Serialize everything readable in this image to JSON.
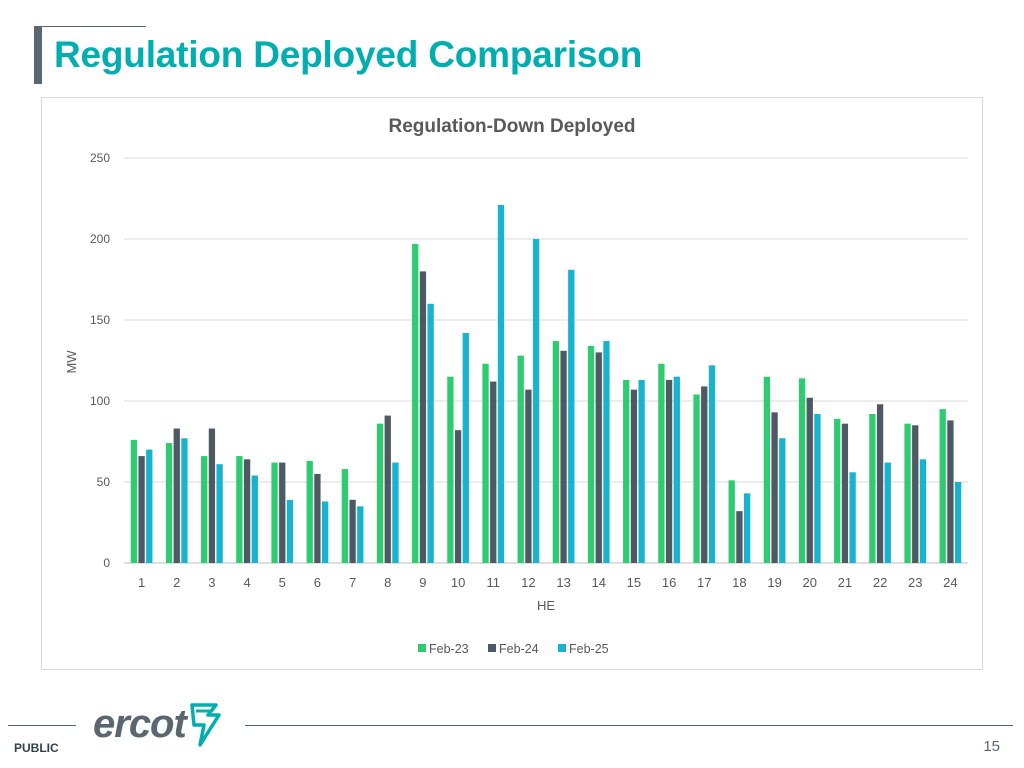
{
  "slide": {
    "title": "Regulation Deployed Comparison",
    "footer_label": "PUBLIC",
    "page_number": "15",
    "logo_text": "ercot"
  },
  "colors": {
    "title": "#00aeb0",
    "series_feb23": "#2ecc71",
    "series_feb24": "#4d5a63",
    "series_feb25": "#17b3cf",
    "grid": "#d9d9d9",
    "axis_text": "#595959"
  },
  "chart_data": {
    "type": "bar",
    "title": "Regulation-Down Deployed",
    "xlabel": "HE",
    "ylabel": "MW",
    "ylim": [
      0,
      250
    ],
    "yticks": [
      0,
      50,
      100,
      150,
      200,
      250
    ],
    "categories": [
      "1",
      "2",
      "3",
      "4",
      "5",
      "6",
      "7",
      "8",
      "9",
      "10",
      "11",
      "12",
      "13",
      "14",
      "15",
      "16",
      "17",
      "18",
      "19",
      "20",
      "21",
      "22",
      "23",
      "24"
    ],
    "series": [
      {
        "name": "Feb-23",
        "values": [
          76,
          74,
          66,
          66,
          62,
          63,
          58,
          86,
          197,
          115,
          123,
          128,
          137,
          134,
          113,
          123,
          104,
          51,
          115,
          114,
          89,
          92,
          86,
          95
        ]
      },
      {
        "name": "Feb-24",
        "values": [
          66,
          83,
          83,
          64,
          62,
          55,
          39,
          91,
          180,
          82,
          112,
          107,
          131,
          130,
          107,
          113,
          109,
          32,
          93,
          102,
          86,
          98,
          85,
          88
        ]
      },
      {
        "name": "Feb-25",
        "values": [
          70,
          77,
          61,
          54,
          39,
          38,
          35,
          62,
          160,
          142,
          221,
          200,
          181,
          137,
          113,
          115,
          122,
          43,
          77,
          92,
          56,
          62,
          64,
          50
        ]
      }
    ],
    "grid": true,
    "legend_position": "bottom-center"
  }
}
